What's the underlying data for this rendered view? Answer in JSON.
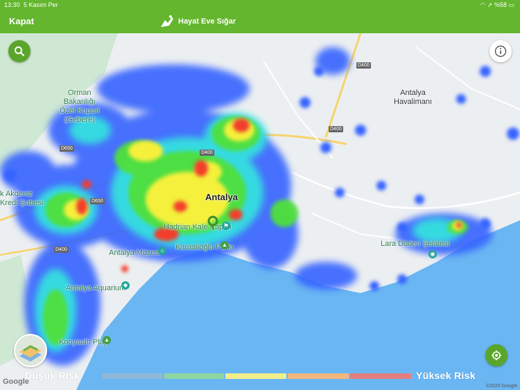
{
  "status_bar": {
    "time": "13:30",
    "date": "5 Kasım Per",
    "battery": "%58"
  },
  "navbar": {
    "close_label": "Kapat",
    "app_title": "Hayat Eve Sığar"
  },
  "map": {
    "places": {
      "antalya": "Antalya",
      "airport": "Antalya\nHavalimanı",
      "forest": "Orman\nBakanlığı\nÖzel Kapari\n(Gebere)",
      "akdeniz_bank": "k Akdeniz\nKredi Şubesi",
      "hadrian": "Hadrian Kale Kapısı",
      "karaalioglu": "Karaalioğlu Parkı",
      "museum": "Antalya Müzesi",
      "aquarium": "Antalya Aquarium",
      "konyaalti": "Konyaaltı Plajı",
      "duden": "Lara Düden Şelalesi"
    },
    "roads": {
      "d400_a": "D400",
      "d400_b": "D400",
      "d400_c": "D400",
      "d400_d": "D400",
      "d650_a": "D650",
      "d650_b": "D650"
    },
    "google": "Google",
    "copyright": "©2020 Google"
  },
  "legend": {
    "low_label": "Düşük Risk",
    "high_label": "Yüksek Risk",
    "colors": [
      "#8fb8d8",
      "#8ed6a2",
      "#f2ef8a",
      "#f3b77d",
      "#e57e7e"
    ]
  },
  "icons": {
    "search": "search-icon",
    "info": "info-icon",
    "locate": "locate-icon",
    "layers": "map-layers-icon"
  }
}
